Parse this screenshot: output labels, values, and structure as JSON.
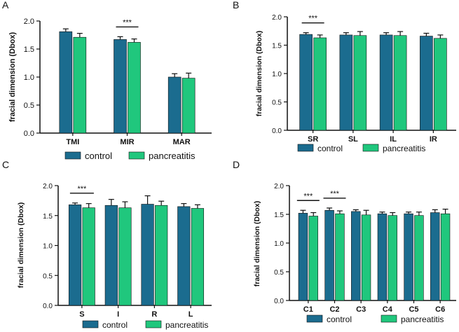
{
  "colors": {
    "control": "#1b6c8f",
    "pancreatitis": "#20c77d"
  },
  "chart_data": [
    {
      "panel": "A",
      "type": "bar",
      "ylabel": "fracial dimension (Dbox)",
      "ylim": [
        0,
        2.0
      ],
      "yticks": [
        "0.0",
        "0.5",
        "1.0",
        "1.5",
        "2.0"
      ],
      "categories": [
        "TMI",
        "MIR",
        "MAR"
      ],
      "series": [
        {
          "name": "control",
          "values": [
            1.81,
            1.67,
            1.0
          ],
          "errors": [
            0.05,
            0.05,
            0.06
          ]
        },
        {
          "name": "pancreatitis",
          "values": [
            1.71,
            1.62,
            0.98
          ],
          "errors": [
            0.07,
            0.06,
            0.09
          ]
        }
      ],
      "legend": [
        "control",
        "pancreatitis"
      ],
      "significance": [
        {
          "category": 1,
          "label": "***"
        }
      ]
    },
    {
      "panel": "B",
      "type": "bar",
      "ylabel": "fracial dimension (Dbox)",
      "ylim": [
        0,
        2.0
      ],
      "yticks": [
        "0.0",
        "0.5",
        "1.0",
        "1.5",
        "2.0"
      ],
      "categories": [
        "SR",
        "SL",
        "IL",
        "IR"
      ],
      "series": [
        {
          "name": "control",
          "values": [
            1.69,
            1.68,
            1.68,
            1.66
          ],
          "errors": [
            0.03,
            0.04,
            0.04,
            0.05
          ]
        },
        {
          "name": "pancreatitis",
          "values": [
            1.63,
            1.67,
            1.67,
            1.62
          ],
          "errors": [
            0.05,
            0.07,
            0.07,
            0.06
          ]
        }
      ],
      "legend": [
        "control",
        "pancreatitis"
      ],
      "significance": [
        {
          "category": 0,
          "label": "***"
        }
      ]
    },
    {
      "panel": "C",
      "type": "bar",
      "ylabel": "fracial dimension (Dbox)",
      "ylim": [
        0,
        2.0
      ],
      "yticks": [
        "0.0",
        "0.5",
        "1.0",
        "1.5",
        "2.0"
      ],
      "categories": [
        "S",
        "I",
        "R",
        "L"
      ],
      "series": [
        {
          "name": "control",
          "values": [
            1.68,
            1.67,
            1.69,
            1.65
          ],
          "errors": [
            0.03,
            0.1,
            0.14,
            0.05
          ]
        },
        {
          "name": "pancreatitis",
          "values": [
            1.63,
            1.63,
            1.67,
            1.62
          ],
          "errors": [
            0.07,
            0.1,
            0.07,
            0.06
          ]
        }
      ],
      "legend": [
        "control",
        "pancreatitis"
      ],
      "significance": [
        {
          "category": 0,
          "label": "***"
        }
      ]
    },
    {
      "panel": "D",
      "type": "bar",
      "ylabel": "fracial dimension (Dbox)",
      "ylim": [
        0,
        2.0
      ],
      "yticks": [
        "0.0",
        "0.5",
        "1.0",
        "1.5",
        "2.0"
      ],
      "categories": [
        "C1",
        "C2",
        "C3",
        "C4",
        "C5",
        "C6"
      ],
      "series": [
        {
          "name": "control",
          "values": [
            1.52,
            1.57,
            1.55,
            1.51,
            1.51,
            1.53
          ],
          "errors": [
            0.05,
            0.04,
            0.03,
            0.03,
            0.03,
            0.05
          ]
        },
        {
          "name": "pancreatitis",
          "values": [
            1.47,
            1.51,
            1.49,
            1.48,
            1.48,
            1.51
          ],
          "errors": [
            0.06,
            0.05,
            0.08,
            0.05,
            0.06,
            0.08
          ]
        }
      ],
      "legend": [
        "control",
        "pancreatitis"
      ],
      "significance": [
        {
          "category": 0,
          "label": "***"
        },
        {
          "category": 1,
          "label": "***"
        }
      ]
    }
  ]
}
